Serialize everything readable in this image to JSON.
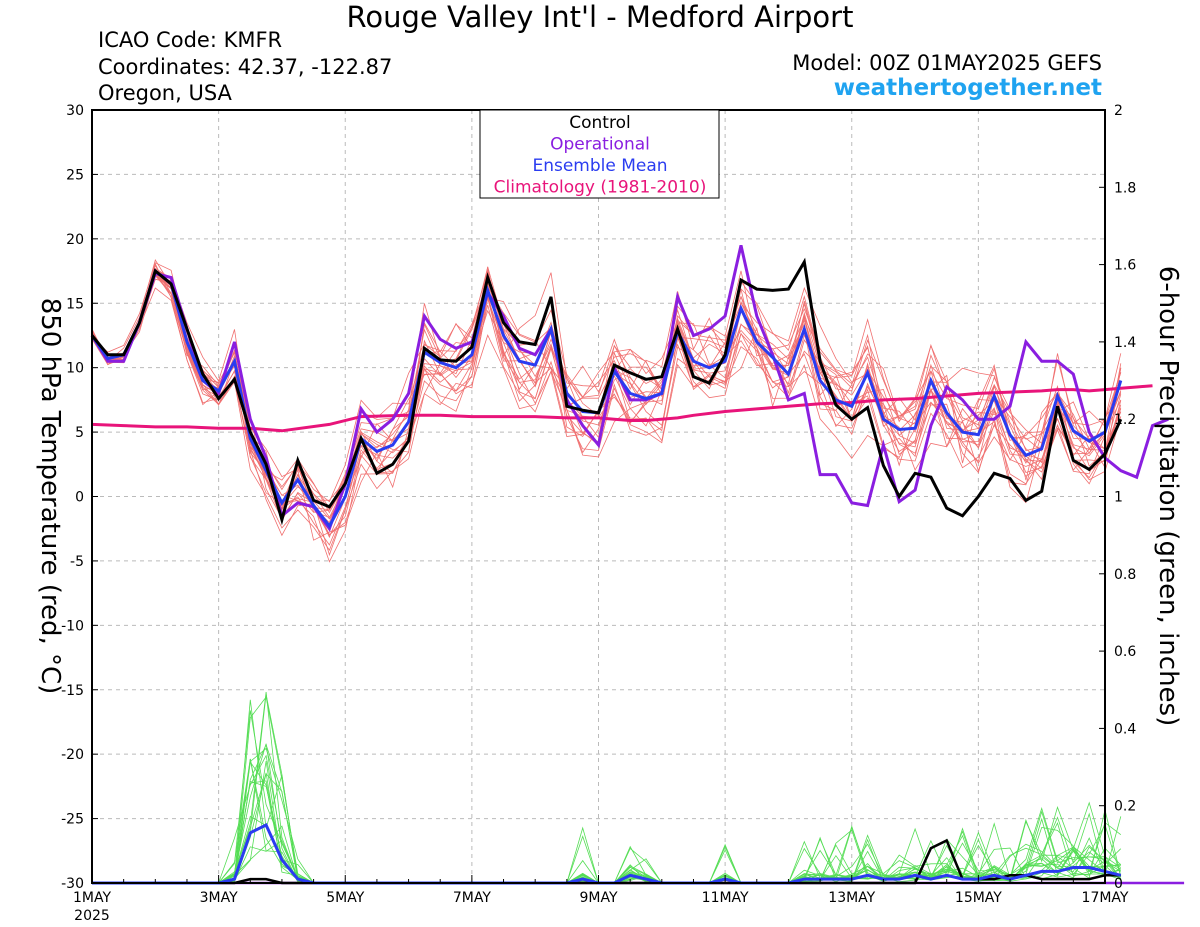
{
  "header": {
    "title": "Rouge Valley Int'l - Medford Airport",
    "icao": "ICAO Code: KMFR",
    "coordinates": "Coordinates: 42.37, -122.87",
    "location": "Oregon, USA",
    "model": "Model: 00Z 01MAY2025 GEFS",
    "site": "weathertogether.net"
  },
  "chart_data": {
    "type": "line",
    "ylabel": "850 hPa Temperature (red, °C)",
    "y2label": "6-hour Precipitation (green, inches)",
    "ylim": [
      -30,
      30
    ],
    "y2lim": [
      0,
      2
    ],
    "yticks": [
      "30",
      "25",
      "20",
      "15",
      "10",
      "5",
      "0",
      "-5",
      "-10",
      "-15",
      "-20",
      "-25",
      "-30"
    ],
    "y2ticks": [
      "2",
      "1.8",
      "1.6",
      "1.4",
      "1.2",
      "1",
      "0.8",
      "0.6",
      "0.4",
      "0.2",
      "0"
    ],
    "xticks": [
      {
        "day": 1,
        "label": "1MAY",
        "sub": "2025"
      },
      {
        "day": 3,
        "label": "3MAY"
      },
      {
        "day": 5,
        "label": "5MAY"
      },
      {
        "day": 7,
        "label": "7MAY"
      },
      {
        "day": 9,
        "label": "9MAY"
      },
      {
        "day": 11,
        "label": "11MAY"
      },
      {
        "day": 13,
        "label": "13MAY"
      },
      {
        "day": 15,
        "label": "15MAY"
      },
      {
        "day": 17,
        "label": "17MAY"
      }
    ],
    "xlim_days": [
      1,
      17
    ],
    "step_days": 0.25,
    "legend": {
      "position": "top-center",
      "entries": [
        {
          "label": "Control",
          "color": "#000000"
        },
        {
          "label": "Operational",
          "color": "#8a1ee0"
        },
        {
          "label": "Ensemble Mean",
          "color": "#2a3cf0"
        },
        {
          "label": "Climatology (1981-2010)",
          "color": "#e8147a"
        }
      ]
    },
    "colors": {
      "member_temp": "#f07070",
      "member_precip": "#55dd55",
      "control": "#000000",
      "operational": "#8a1ee0",
      "mean": "#2a3cf0",
      "climatology": "#e8147a"
    },
    "series": {
      "control_temp": [
        12.5,
        11,
        11,
        13.5,
        17.5,
        16.5,
        13,
        9.5,
        7.6,
        9.1,
        5,
        2.5,
        -1.8,
        2.8,
        -0.3,
        -0.8,
        1,
        4.5,
        1.8,
        2.5,
        4.3,
        11.5,
        10.6,
        10.5,
        11.6,
        17,
        13.5,
        12,
        11.8,
        15.5,
        7,
        6.7,
        6.5,
        10.2,
        9.6,
        9.1,
        9.3,
        13,
        9.3,
        8.8,
        11,
        16.8,
        16.1,
        16,
        16.1,
        18.2,
        10.5,
        7.1,
        6,
        6.9,
        2.4,
        0,
        1.8,
        1.5,
        -0.9,
        -1.5,
        0,
        1.8,
        1.4,
        -0.3,
        0.4,
        7,
        2.8,
        2.1,
        3.3,
        6
      ],
      "operational_temp": [
        12.5,
        10.5,
        10.5,
        13.5,
        17.3,
        17,
        13,
        9,
        8,
        12,
        6,
        3,
        -1.5,
        -0.5,
        -0.8,
        -2.5,
        1,
        6.8,
        5,
        6,
        8,
        14,
        12.2,
        11.5,
        12,
        15.8,
        14,
        11.5,
        11,
        13,
        7.5,
        5.5,
        4,
        10,
        7.5,
        7.5,
        8,
        15.5,
        12.5,
        13,
        14,
        19.5,
        14,
        11,
        7.5,
        8,
        1.7,
        1.7,
        -0.5,
        -0.7,
        4,
        -0.4,
        0.5,
        5.5,
        8.5,
        7.5,
        6,
        6,
        7,
        12,
        10.5,
        10.5,
        9.5,
        5,
        3,
        2,
        1.5,
        5.5,
        6
      ],
      "mean_temp": [
        12.5,
        10.7,
        11,
        13.5,
        17.5,
        16.5,
        12,
        9,
        8.2,
        10.5,
        4.5,
        2,
        -0.5,
        1.3,
        -0.7,
        -2.3,
        0,
        4.5,
        3.5,
        4,
        5.8,
        11.2,
        10.4,
        10,
        11,
        16,
        12.5,
        10.5,
        10.2,
        13,
        8,
        6.6,
        6.5,
        9.7,
        8,
        7.6,
        8,
        12.8,
        10.5,
        10,
        10.5,
        14.6,
        12,
        10.8,
        9.5,
        13,
        9,
        7.5,
        7,
        9.6,
        6,
        5.2,
        5.3,
        9,
        6.5,
        5,
        4.8,
        7.8,
        4.8,
        3.2,
        3.7,
        7.8,
        5.1,
        4.3,
        5,
        9
      ],
      "climatology_temp": [
        5.6,
        5.5,
        5.4,
        5.4,
        5.3,
        5.3,
        5.2,
        5.1,
        5.6,
        6.2,
        6.3,
        6.3,
        6.2,
        6.2,
        6.2,
        6.1,
        6.1,
        6.1,
        6,
        5.9,
        5.9,
        6.1,
        6.3,
        6.6,
        6.8,
        7.0,
        7.2,
        7.3,
        7.5,
        7.6,
        7.8,
        8.0,
        8.1,
        8.2,
        8.3,
        8.3,
        8.2,
        8.3,
        8.4,
        8.5,
        8.6
      ],
      "climatology_days": [
        1,
        1.5,
        2,
        2.5,
        3,
        3.5,
        3.75,
        4,
        4.75,
        5.25,
        6,
        6.5,
        7,
        7.5,
        8,
        8.5,
        8.75,
        9,
        9.25,
        9.5,
        9.75,
        10.25,
        10.5,
        11,
        11.5,
        12,
        12.5,
        13,
        13.5,
        14,
        14.5,
        15,
        15.5,
        16,
        16.25,
        16.5,
        16.75,
        17,
        17.25,
        17.5,
        17.75
      ],
      "control_precip": [
        0,
        0,
        0,
        0,
        0,
        0,
        0,
        0,
        0,
        0,
        0.01,
        0.01,
        0,
        0,
        0,
        0,
        0,
        0,
        0,
        0,
        0,
        0,
        0,
        0,
        0,
        0,
        0,
        0,
        0,
        0,
        0,
        0,
        0,
        0,
        0,
        0,
        0,
        0,
        0,
        0,
        0,
        0,
        0,
        0,
        0,
        0,
        0,
        0,
        0,
        0,
        0,
        0,
        0,
        0.09,
        0.11,
        0.01,
        0.01,
        0.01,
        0.02,
        0.02,
        0.01,
        0.01,
        0.01,
        0.01,
        0.02,
        0.02
      ],
      "mean_precip": [
        0,
        0,
        0,
        0,
        0,
        0,
        0,
        0,
        0,
        0.01,
        0.13,
        0.15,
        0.06,
        0.01,
        0,
        0,
        0,
        0,
        0,
        0,
        0,
        0,
        0,
        0,
        0,
        0,
        0,
        0,
        0,
        0,
        0,
        0.01,
        0,
        0,
        0.02,
        0.01,
        0,
        0,
        0,
        0,
        0.01,
        0,
        0,
        0,
        0,
        0.01,
        0.01,
        0.01,
        0.01,
        0.02,
        0.01,
        0.01,
        0.02,
        0.01,
        0.02,
        0.01,
        0.01,
        0.02,
        0.01,
        0.02,
        0.03,
        0.03,
        0.04,
        0.04,
        0.03,
        0.02
      ],
      "operational_precip": [
        0,
        0,
        0,
        0,
        0,
        0,
        0,
        0,
        0,
        0,
        0,
        0,
        0,
        0,
        0,
        0,
        0,
        0,
        0,
        0,
        0,
        0,
        0,
        0,
        0,
        0,
        0,
        0,
        0,
        0,
        0,
        0,
        0,
        0,
        0,
        0,
        0,
        0,
        0,
        0,
        0,
        0,
        0,
        0,
        0,
        0,
        0,
        0,
        0,
        0,
        0,
        0,
        0,
        0,
        0,
        0,
        0,
        0,
        0,
        0,
        0,
        0,
        0,
        0,
        0,
        0,
        0,
        0,
        0,
        0
      ]
    }
  }
}
